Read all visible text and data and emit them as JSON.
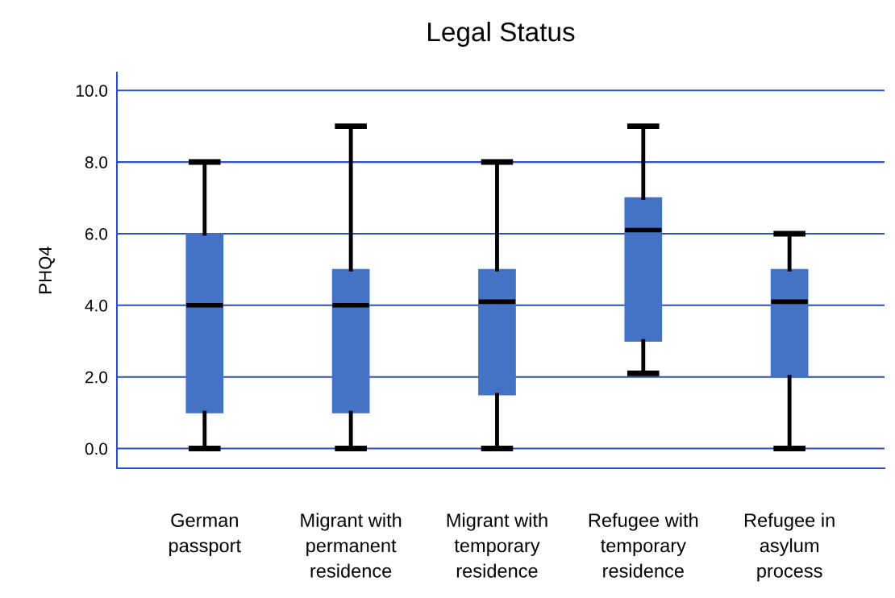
{
  "chart_data": {
    "type": "box",
    "title": "Legal Status",
    "ylabel": "PHQ4",
    "categories": [
      "German\npassport",
      "Migrant with\npermanent\nresidence",
      "Migrant with\ntemporary\nresidence",
      "Refugee with\ntemporary\nresidence",
      "Refugee in\nasylum\nprocess"
    ],
    "boxes": [
      {
        "low": 0,
        "q1": 1,
        "median": 4,
        "q3": 6,
        "high": 8
      },
      {
        "low": 0,
        "q1": 1,
        "median": 4,
        "q3": 5,
        "high": 9
      },
      {
        "low": 0,
        "q1": 1.5,
        "median": 4.1,
        "q3": 5,
        "high": 8
      },
      {
        "low": 2.1,
        "q1": 3,
        "median": 6.1,
        "q3": 7,
        "high": 9
      },
      {
        "low": 0,
        "q1": 2,
        "median": 4.1,
        "q3": 5,
        "high": 6
      }
    ],
    "color": "#4472c4",
    "ylim": [
      -0.55,
      10.5
    ],
    "yticks": [
      {
        "value": 0,
        "label": "0.0"
      },
      {
        "value": 2,
        "label": "2.0"
      },
      {
        "value": 4,
        "label": "4.0"
      },
      {
        "value": 6,
        "label": "6.0"
      },
      {
        "value": 8,
        "label": "8.0"
      },
      {
        "value": 10,
        "label": "10.0"
      }
    ],
    "grid": "y"
  }
}
